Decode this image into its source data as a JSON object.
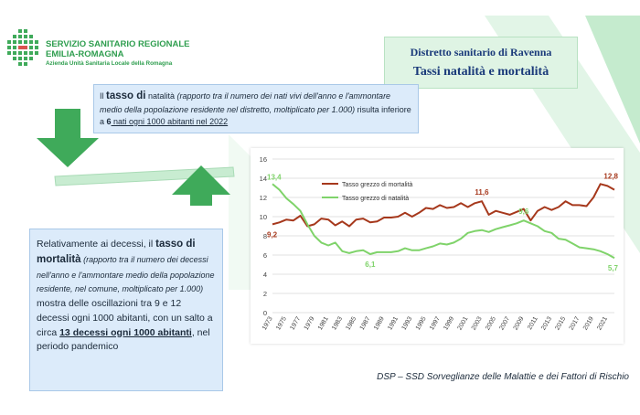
{
  "header": {
    "org_line1": "SERVIZIO SANITARIO REGIONALE",
    "org_line2": "EMILIA-ROMAGNA",
    "org_line3": "Azienda Unità Sanitaria Locale della Romagna"
  },
  "title_box": {
    "line1": "Distretto sanitario di Ravenna",
    "line2": "Tassi natalità e mortalità"
  },
  "natality_box": {
    "t1": "Il ",
    "t2": "tasso di",
    "t3": " natalità ",
    "t4": "(rapporto tra il numero dei nati vivi dell'anno e l'ammontare medio della popolazione residente nel distretto, moltiplicato per 1.000)",
    "t5": " risulta inferiore a ",
    "t6": "6",
    "t7": " nati ogni 1000 abitanti nel 2022"
  },
  "mortality_box": {
    "t1": "Relativamente ai decessi, il ",
    "t2": "tasso di mortalità",
    "t3": " (rapporto tra il numero dei decessi nell'anno e l'ammontare medio della popolazione residente, nel comune, moltiplicato per 1.000)",
    "t4": " mostra delle oscillazioni tra 9 e 12 decessi ogni 1000 abitanti, con un salto a circa ",
    "t5": "13 decessi ogni 1000 abitanti",
    "t6": ", nel periodo pandemico"
  },
  "footer": "DSP – SSD Sorveglianze delle Malattie e dei Fattori di Rischio",
  "colors": {
    "mortality": "#a6381c",
    "natality": "#7fd36a",
    "green": "#3faa5a",
    "box_blue": "#dcebfa"
  },
  "chart_data": {
    "type": "line",
    "x": [
      1973,
      1974,
      1975,
      1976,
      1977,
      1978,
      1979,
      1980,
      1981,
      1982,
      1983,
      1984,
      1985,
      1986,
      1987,
      1988,
      1989,
      1990,
      1991,
      1992,
      1993,
      1994,
      1995,
      1996,
      1997,
      1998,
      1999,
      2000,
      2001,
      2002,
      2003,
      2004,
      2005,
      2006,
      2007,
      2008,
      2009,
      2010,
      2011,
      2012,
      2013,
      2014,
      2015,
      2016,
      2017,
      2018,
      2019,
      2020,
      2021,
      2022
    ],
    "x_tick_labels": [
      "1973",
      "1975",
      "1977",
      "1979",
      "1981",
      "1983",
      "1985",
      "1987",
      "1989",
      "1991",
      "1993",
      "1995",
      "1997",
      "1999",
      "2001",
      "2003",
      "2005",
      "2007",
      "2009",
      "2011",
      "2013",
      "2015",
      "2017",
      "2019",
      "2021"
    ],
    "series": [
      {
        "name": "Tasso grezzo di mortalità",
        "color": "#a6381c",
        "values": [
          9.2,
          9.4,
          9.7,
          9.6,
          10.1,
          9.0,
          9.2,
          9.8,
          9.7,
          9.1,
          9.5,
          9.0,
          9.7,
          9.8,
          9.4,
          9.5,
          9.9,
          9.9,
          10.0,
          10.4,
          10.0,
          10.4,
          10.9,
          10.8,
          11.2,
          10.9,
          11.0,
          11.4,
          11.0,
          11.4,
          11.6,
          10.2,
          10.6,
          10.4,
          10.2,
          10.5,
          10.8,
          9.6,
          10.6,
          11.0,
          10.7,
          11.0,
          11.6,
          11.2,
          11.2,
          11.1,
          12.0,
          13.4,
          13.2,
          12.8
        ]
      },
      {
        "name": "Tasso grezzo di natalità",
        "color": "#7fd36a",
        "values": [
          13.4,
          12.8,
          11.9,
          11.3,
          10.6,
          9.2,
          8.0,
          7.3,
          7.0,
          7.3,
          6.4,
          6.2,
          6.4,
          6.5,
          6.1,
          6.3,
          6.3,
          6.3,
          6.4,
          6.7,
          6.5,
          6.5,
          6.7,
          6.9,
          7.2,
          7.1,
          7.3,
          7.7,
          8.3,
          8.5,
          8.6,
          8.4,
          8.7,
          8.9,
          9.1,
          9.3,
          9.6,
          9.3,
          9.0,
          8.5,
          8.3,
          7.7,
          7.6,
          7.2,
          6.8,
          6.7,
          6.6,
          6.4,
          6.1,
          5.7
        ]
      }
    ],
    "annotations": [
      {
        "series": "Tasso grezzo di mortalità",
        "x": 1973,
        "label": "9,2"
      },
      {
        "series": "Tasso grezzo di mortalità",
        "x": 2003,
        "label": "11,6"
      },
      {
        "series": "Tasso grezzo di mortalità",
        "x": 2022,
        "label": "12,8"
      },
      {
        "series": "Tasso grezzo di natalità",
        "x": 1973,
        "label": "13,4"
      },
      {
        "series": "Tasso grezzo di natalità",
        "x": 1987,
        "label": "6,1"
      },
      {
        "series": "Tasso grezzo di natalità",
        "x": 2009,
        "label": "9,6"
      },
      {
        "series": "Tasso grezzo di natalità",
        "x": 2022,
        "label": "5,7"
      }
    ],
    "ylim": [
      0,
      16
    ],
    "yticks": [
      0,
      2,
      4,
      6,
      8,
      10,
      12,
      14,
      16
    ],
    "grid": true,
    "legend": "top-left",
    "title": "",
    "xlabel": "",
    "ylabel": ""
  }
}
